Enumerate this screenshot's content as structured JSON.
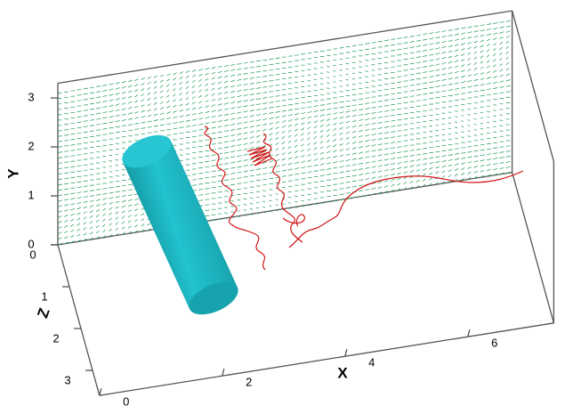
{
  "axes": {
    "x": {
      "label": "X",
      "ticks": [
        0,
        2,
        4,
        6
      ]
    },
    "y": {
      "label": "Y",
      "ticks": [
        0,
        1,
        2,
        3
      ]
    },
    "z": {
      "label": "Z",
      "ticks": [
        0,
        1,
        2,
        3
      ]
    }
  }
}
